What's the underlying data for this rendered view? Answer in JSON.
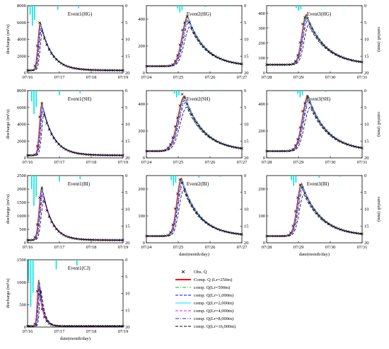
{
  "figure": {
    "series_styles": [
      {
        "name": "Obs. Q",
        "color": "#000000",
        "kind": "marker"
      },
      {
        "name": "Comp. Q (Lr=250m)",
        "color": "#ff0000",
        "kind": "solid"
      },
      {
        "name": "comp. Q(Lr=500m)",
        "color": "#00c000",
        "kind": "dashdot"
      },
      {
        "name": "comp. Q(Lr=1,000m)",
        "color": "#0000ff",
        "kind": "dash"
      },
      {
        "name": "comp. Q(Lr=2,000m)",
        "color": "#00e5ff",
        "kind": "solid"
      },
      {
        "name": "comp. Q(Lr=4,000m)",
        "color": "#ff00ff",
        "kind": "dash"
      },
      {
        "name": "comp. Q(Lr=8,000m)",
        "color": "#2020a0",
        "kind": "dashdot"
      },
      {
        "name": "comp. Q(Lr=16,000m)",
        "color": "#000000",
        "kind": "dash"
      }
    ],
    "rain_color": "#00e5e5",
    "label_discharge": "discharge (m³/s)",
    "label_rainfall": "rainfall (mm)",
    "label_date": "date(month/day)"
  },
  "chart_data": [
    {
      "id": "p11",
      "type": "line",
      "title": "Event1(HG)",
      "x_ticks": [
        "07/16",
        "07/17",
        "07/18",
        "07/19"
      ],
      "ylim": [
        0,
        8000
      ],
      "y_ticks": [
        0,
        2000,
        4000,
        6000,
        8000
      ],
      "rain_ticks": [
        0,
        5,
        10,
        15,
        20
      ],
      "obs_peak": 6000,
      "peak_day": 0.4,
      "base": 300,
      "rise": 0.1,
      "decay": 0.35,
      "rain_peak": 6,
      "ylabel": "discharge (m³/s)",
      "right_label": "",
      "xlabel": ""
    },
    {
      "id": "p12",
      "type": "line",
      "title": "Event2(HG)",
      "x_ticks": [
        "07/24",
        "07/25",
        "07/26",
        "07/27"
      ],
      "ylim": [
        0,
        500
      ],
      "y_ticks": [
        0,
        200,
        400
      ],
      "rain_ticks": [
        0,
        5,
        10,
        15,
        20
      ],
      "obs_peak": 420,
      "peak_day": 1.3,
      "base": 50,
      "rise": 0.25,
      "decay": 0.55,
      "rain_peak": 2,
      "ylabel": "",
      "right_label": "",
      "xlabel": ""
    },
    {
      "id": "p13",
      "type": "line",
      "title": "Event3(HG)",
      "x_ticks": [
        "07/28",
        "07/29",
        "07/30",
        "07/31"
      ],
      "ylim": [
        0,
        450
      ],
      "y_ticks": [
        0,
        100,
        200,
        300,
        400
      ],
      "rain_ticks": [
        0,
        5,
        10,
        15,
        20
      ],
      "obs_peak": 390,
      "peak_day": 1.25,
      "base": 55,
      "rise": 0.2,
      "decay": 0.6,
      "rain_peak": 1.5,
      "ylabel": "",
      "right_label": "rainfall (mm)",
      "xlabel": ""
    },
    {
      "id": "p21",
      "type": "line",
      "title": "Event1(SH)",
      "x_ticks": [
        "07/16",
        "07/17",
        "07/18",
        "07/19"
      ],
      "ylim": [
        0,
        8000
      ],
      "y_ticks": [
        0,
        2000,
        4000,
        6000,
        8000
      ],
      "rain_ticks": [
        0,
        5,
        10,
        15,
        20
      ],
      "obs_peak": 6500,
      "peak_day": 0.45,
      "base": 300,
      "rise": 0.1,
      "decay": 0.35,
      "rain_peak": 7,
      "ylabel": "discharge (m³/s)",
      "right_label": "",
      "xlabel": ""
    },
    {
      "id": "p22",
      "type": "line",
      "title": "Event2(SH)",
      "x_ticks": [
        "07/24",
        "07/25",
        "07/26",
        "07/27"
      ],
      "ylim": [
        0,
        500
      ],
      "y_ticks": [
        0,
        200,
        400
      ],
      "rain_ticks": [
        0,
        5,
        10,
        15,
        20
      ],
      "obs_peak": 460,
      "peak_day": 1.2,
      "base": 50,
      "rise": 0.3,
      "decay": 0.6,
      "rain_peak": 2,
      "ylabel": "",
      "right_label": "",
      "xlabel": ""
    },
    {
      "id": "p23",
      "type": "line",
      "title": "Event3(SH)",
      "x_ticks": [
        "07/28",
        "07/29",
        "07/30",
        "07/31"
      ],
      "ylim": [
        0,
        500
      ],
      "y_ticks": [
        0,
        200,
        400
      ],
      "rain_ticks": [
        0,
        5,
        10,
        15,
        20
      ],
      "obs_peak": 460,
      "peak_day": 1.3,
      "base": 50,
      "rise": 0.25,
      "decay": 0.6,
      "rain_peak": 2,
      "ylabel": "",
      "right_label": "rainfall (mm)",
      "xlabel": ""
    },
    {
      "id": "p31",
      "type": "line",
      "title": "Event1(BI)",
      "x_ticks": [
        "07/16",
        "07/17",
        "07/18",
        "07/19"
      ],
      "ylim": [
        0,
        2500
      ],
      "y_ticks": [
        0,
        500,
        1000,
        1500,
        2000,
        2500
      ],
      "rain_ticks": [
        0,
        5,
        10,
        15,
        20
      ],
      "obs_peak": 2050,
      "peak_day": 0.45,
      "base": 100,
      "rise": 0.12,
      "decay": 0.3,
      "rain_peak": 9,
      "ylabel": "discharge (m³/s)",
      "right_label": "",
      "xlabel": ""
    },
    {
      "id": "p32",
      "type": "line",
      "title": "Event2(BI)",
      "x_ticks": [
        "07/24",
        "07/25",
        "07/26",
        "07/27"
      ],
      "ylim": [
        0,
        250
      ],
      "y_ticks": [
        0,
        100,
        200
      ],
      "rain_ticks": [
        0,
        5,
        10,
        15,
        20
      ],
      "obs_peak": 240,
      "peak_day": 1.1,
      "base": 25,
      "rise": 0.2,
      "decay": 0.55,
      "rain_peak": 3,
      "ylabel": "",
      "right_label": "",
      "xlabel": "date(month/day)"
    },
    {
      "id": "p33",
      "type": "line",
      "title": "Event3(BI)",
      "x_ticks": [
        "07/28",
        "07/29",
        "07/30",
        "07/31"
      ],
      "ylim": [
        0,
        250
      ],
      "y_ticks": [
        0,
        100,
        200
      ],
      "rain_ticks": [
        0,
        5,
        10,
        15,
        20
      ],
      "obs_peak": 220,
      "peak_day": 1.1,
      "base": 25,
      "rise": 0.2,
      "decay": 0.6,
      "rain_peak": 3,
      "ylabel": "",
      "right_label": "rainfall (mm)",
      "xlabel": "date(month/day)"
    },
    {
      "id": "p41",
      "type": "line",
      "title": "Event1(CJ)",
      "x_ticks": [
        "07/16",
        "07/17",
        "07/18",
        "07/19"
      ],
      "ylim": [
        0,
        1500
      ],
      "y_ticks": [
        0,
        500,
        1000,
        1500
      ],
      "rain_ticks": [
        0,
        5,
        10,
        15,
        20
      ],
      "obs_peak": 1050,
      "peak_day": 0.35,
      "base": 20,
      "rise": 0.06,
      "decay": 0.12,
      "rain_peak": 14,
      "ylabel": "discharge (m³/s)",
      "right_label": "",
      "xlabel": "date(month/day)"
    }
  ]
}
